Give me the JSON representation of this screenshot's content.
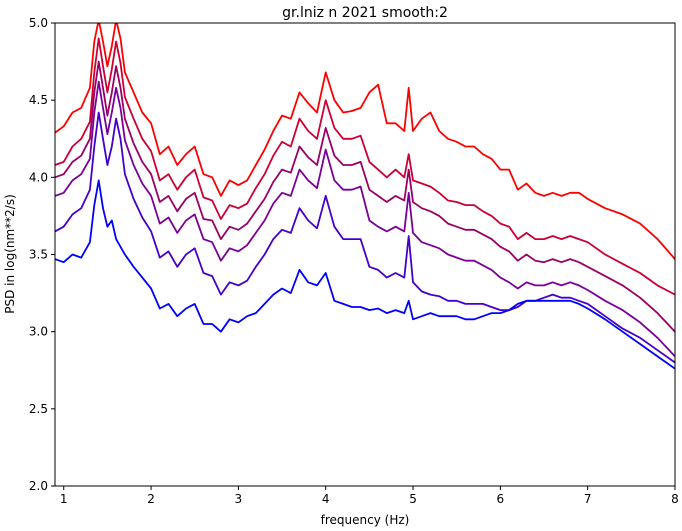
{
  "chart_data": {
    "type": "line",
    "title": "gr.lniz n 2021 smooth:2",
    "xlabel": "frequency (Hz)",
    "ylabel": "PSD in log(nm**2/s)",
    "xlim": [
      0.9,
      8.0
    ],
    "ylim": [
      2.0,
      5.0
    ],
    "xticks": [
      1,
      2,
      3,
      4,
      5,
      6,
      7,
      8
    ],
    "yticks": [
      2.0,
      2.5,
      3.0,
      3.5,
      4.0,
      4.5,
      5.0
    ],
    "grid": false,
    "x": [
      0.9,
      1.0,
      1.1,
      1.2,
      1.3,
      1.35,
      1.4,
      1.45,
      1.5,
      1.55,
      1.6,
      1.65,
      1.7,
      1.8,
      1.9,
      2.0,
      2.1,
      2.2,
      2.3,
      2.4,
      2.5,
      2.6,
      2.7,
      2.8,
      2.9,
      3.0,
      3.1,
      3.2,
      3.3,
      3.4,
      3.5,
      3.6,
      3.7,
      3.8,
      3.9,
      4.0,
      4.1,
      4.2,
      4.3,
      4.4,
      4.5,
      4.6,
      4.7,
      4.8,
      4.9,
      4.95,
      5.0,
      5.1,
      5.2,
      5.3,
      5.4,
      5.5,
      5.6,
      5.7,
      5.8,
      5.9,
      6.0,
      6.1,
      6.2,
      6.3,
      6.4,
      6.5,
      6.6,
      6.7,
      6.8,
      6.9,
      7.0,
      7.2,
      7.4,
      7.6,
      7.8,
      8.0
    ],
    "series": [
      {
        "color": "#ff0000",
        "values": [
          4.29,
          4.33,
          4.42,
          4.45,
          4.58,
          4.88,
          5.02,
          4.88,
          4.72,
          4.85,
          5.02,
          4.9,
          4.68,
          4.55,
          4.42,
          4.35,
          4.15,
          4.2,
          4.08,
          4.15,
          4.2,
          4.02,
          4.0,
          3.88,
          3.98,
          3.95,
          3.98,
          4.08,
          4.18,
          4.3,
          4.4,
          4.38,
          4.55,
          4.48,
          4.42,
          4.68,
          4.5,
          4.42,
          4.43,
          4.45,
          4.55,
          4.6,
          4.35,
          4.35,
          4.3,
          4.58,
          4.3,
          4.38,
          4.42,
          4.3,
          4.25,
          4.23,
          4.2,
          4.2,
          4.15,
          4.12,
          4.05,
          4.05,
          3.92,
          3.96,
          3.9,
          3.88,
          3.9,
          3.88,
          3.9,
          3.9,
          3.86,
          3.8,
          3.76,
          3.7,
          3.6,
          3.47
        ]
      },
      {
        "color": "#cc0033",
        "values": [
          4.08,
          4.1,
          4.2,
          4.25,
          4.36,
          4.68,
          4.9,
          4.72,
          4.55,
          4.7,
          4.88,
          4.74,
          4.52,
          4.38,
          4.25,
          4.17,
          3.98,
          4.02,
          3.92,
          4.0,
          4.05,
          3.87,
          3.85,
          3.73,
          3.82,
          3.8,
          3.83,
          3.93,
          4.02,
          4.14,
          4.23,
          4.2,
          4.38,
          4.3,
          4.25,
          4.5,
          4.32,
          4.25,
          4.25,
          4.27,
          4.1,
          4.05,
          4.0,
          4.05,
          4.0,
          4.15,
          3.98,
          3.96,
          3.94,
          3.9,
          3.85,
          3.84,
          3.82,
          3.82,
          3.78,
          3.75,
          3.7,
          3.68,
          3.6,
          3.64,
          3.6,
          3.6,
          3.62,
          3.6,
          3.62,
          3.6,
          3.58,
          3.5,
          3.44,
          3.38,
          3.3,
          3.24
        ]
      },
      {
        "color": "#9a0066",
        "values": [
          4.0,
          4.02,
          4.1,
          4.14,
          4.25,
          4.55,
          4.75,
          4.58,
          4.4,
          4.55,
          4.72,
          4.58,
          4.38,
          4.22,
          4.1,
          4.02,
          3.84,
          3.88,
          3.78,
          3.86,
          3.9,
          3.73,
          3.72,
          3.6,
          3.68,
          3.66,
          3.7,
          3.78,
          3.86,
          3.97,
          4.05,
          4.03,
          4.2,
          4.13,
          4.08,
          4.32,
          4.14,
          4.08,
          4.08,
          4.1,
          3.92,
          3.88,
          3.84,
          3.88,
          3.85,
          4.05,
          3.84,
          3.8,
          3.78,
          3.75,
          3.7,
          3.68,
          3.66,
          3.66,
          3.63,
          3.6,
          3.55,
          3.52,
          3.46,
          3.5,
          3.46,
          3.45,
          3.47,
          3.45,
          3.47,
          3.45,
          3.42,
          3.36,
          3.3,
          3.22,
          3.12,
          3.0
        ]
      },
      {
        "color": "#7a0099",
        "values": [
          3.88,
          3.9,
          3.98,
          4.02,
          4.12,
          4.42,
          4.62,
          4.45,
          4.28,
          4.42,
          4.58,
          4.45,
          4.24,
          4.08,
          3.96,
          3.88,
          3.7,
          3.74,
          3.64,
          3.72,
          3.76,
          3.6,
          3.58,
          3.46,
          3.54,
          3.52,
          3.56,
          3.64,
          3.72,
          3.83,
          3.9,
          3.88,
          4.05,
          3.98,
          3.93,
          4.18,
          3.98,
          3.92,
          3.92,
          3.94,
          3.72,
          3.68,
          3.65,
          3.68,
          3.65,
          3.9,
          3.64,
          3.58,
          3.56,
          3.54,
          3.5,
          3.48,
          3.46,
          3.46,
          3.43,
          3.4,
          3.35,
          3.32,
          3.28,
          3.32,
          3.3,
          3.3,
          3.32,
          3.3,
          3.32,
          3.3,
          3.27,
          3.2,
          3.14,
          3.06,
          2.96,
          2.84
        ]
      },
      {
        "color": "#4400cc",
        "values": [
          3.65,
          3.68,
          3.76,
          3.8,
          3.92,
          4.2,
          4.42,
          4.25,
          4.08,
          4.2,
          4.38,
          4.25,
          4.02,
          3.86,
          3.74,
          3.65,
          3.48,
          3.52,
          3.42,
          3.5,
          3.54,
          3.38,
          3.36,
          3.24,
          3.32,
          3.3,
          3.33,
          3.42,
          3.5,
          3.6,
          3.66,
          3.64,
          3.8,
          3.72,
          3.67,
          3.88,
          3.68,
          3.6,
          3.6,
          3.6,
          3.42,
          3.4,
          3.35,
          3.38,
          3.35,
          3.62,
          3.32,
          3.26,
          3.24,
          3.23,
          3.2,
          3.2,
          3.18,
          3.18,
          3.18,
          3.16,
          3.14,
          3.14,
          3.16,
          3.2,
          3.2,
          3.22,
          3.24,
          3.22,
          3.22,
          3.2,
          3.18,
          3.1,
          3.02,
          2.96,
          2.88,
          2.8
        ]
      },
      {
        "color": "#0000ff",
        "values": [
          3.47,
          3.45,
          3.5,
          3.48,
          3.58,
          3.82,
          3.98,
          3.8,
          3.68,
          3.72,
          3.6,
          3.55,
          3.5,
          3.42,
          3.35,
          3.28,
          3.15,
          3.18,
          3.1,
          3.15,
          3.18,
          3.05,
          3.05,
          3.0,
          3.08,
          3.06,
          3.1,
          3.12,
          3.18,
          3.24,
          3.28,
          3.25,
          3.4,
          3.32,
          3.3,
          3.38,
          3.2,
          3.18,
          3.16,
          3.16,
          3.14,
          3.15,
          3.12,
          3.14,
          3.12,
          3.2,
          3.08,
          3.1,
          3.12,
          3.1,
          3.1,
          3.1,
          3.08,
          3.08,
          3.1,
          3.12,
          3.12,
          3.14,
          3.18,
          3.2,
          3.2,
          3.2,
          3.2,
          3.2,
          3.2,
          3.18,
          3.15,
          3.08,
          3.0,
          2.92,
          2.84,
          2.76
        ]
      }
    ]
  }
}
